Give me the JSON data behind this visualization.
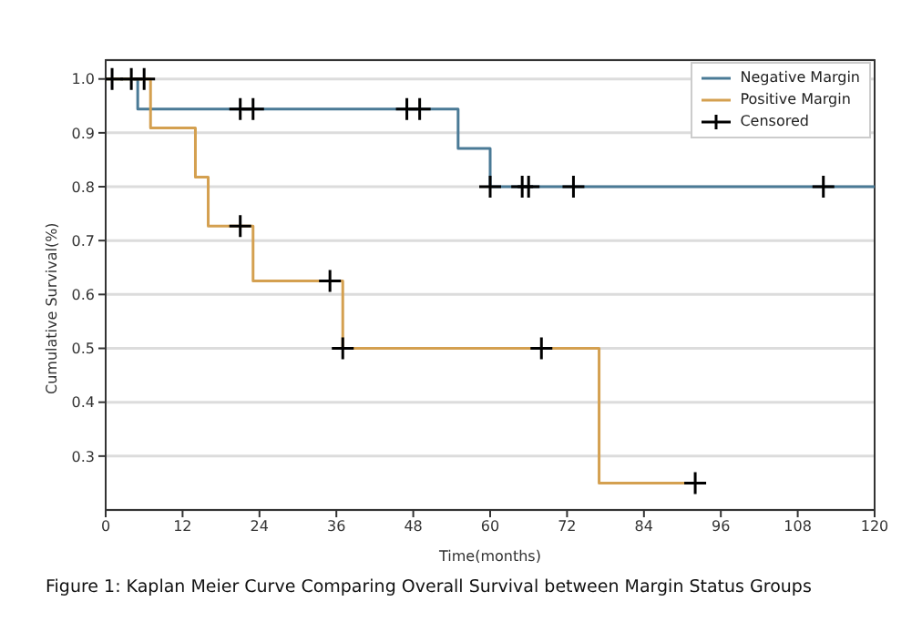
{
  "chart_data": {
    "type": "step",
    "xlabel": "Time(months)",
    "ylabel": "Cumulative Survival(%)",
    "annotations": [
      "Figure 1: Kaplan Meier Curve Comparing Overall Survival between Margin Status Groups"
    ],
    "xlim": [
      0,
      120
    ],
    "xticks": [
      0,
      12,
      24,
      36,
      48,
      60,
      72,
      84,
      96,
      108,
      120
    ],
    "ylim": [
      0.2,
      1.035
    ],
    "yticks": [
      {
        "value": 0.3,
        "label": "0.3"
      },
      {
        "value": 0.4,
        "label": "0.4"
      },
      {
        "value": 0.5,
        "label": "0.5"
      },
      {
        "value": 0.6,
        "label": "0.6"
      },
      {
        "value": 0.7,
        "label": "0.7"
      },
      {
        "value": 0.8,
        "label": "0.8"
      },
      {
        "value": 0.9,
        "label": "0.9"
      },
      {
        "value": 1,
        "label": "1.0"
      }
    ],
    "grid": "y",
    "legend": "top right",
    "series": [
      {
        "name": "Negative Margin",
        "color": "#4a7a96",
        "x": [
          0,
          5,
          55,
          60,
          120
        ],
        "values": [
          1,
          0.944,
          0.871,
          0.8,
          0.8
        ]
      },
      {
        "name": "Positive Margin",
        "color": "#d4a050",
        "x": [
          0,
          7,
          14,
          16,
          23,
          37,
          77,
          92
        ],
        "values": [
          1,
          0.909,
          0.818,
          0.727,
          0.625,
          0.5,
          0.25,
          0.25
        ]
      },
      {
        "name": "Censored",
        "type": "scatter",
        "marker": "cross",
        "color": "#000000",
        "x": [
          1,
          4,
          6,
          21,
          23,
          47,
          49,
          60,
          65,
          66,
          73,
          112,
          21,
          35,
          37,
          68,
          92
        ],
        "values": [
          1,
          1,
          1,
          0.944,
          0.944,
          0.944,
          0.944,
          0.8,
          0.8,
          0.8,
          0.8,
          0.8,
          0.727,
          0.625,
          0.5,
          0.5,
          0.25
        ]
      }
    ]
  }
}
